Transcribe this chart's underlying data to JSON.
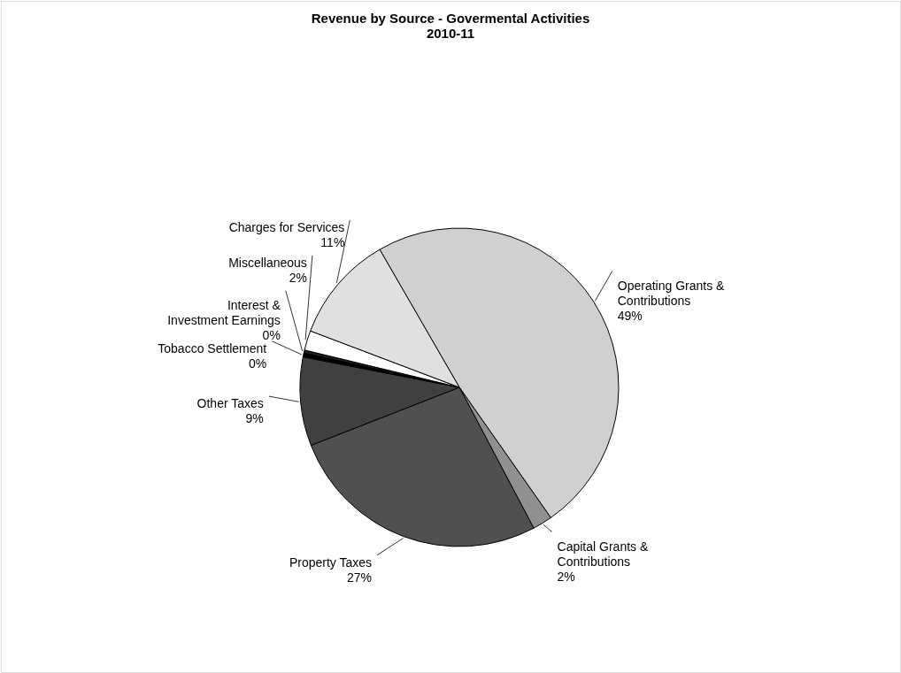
{
  "chart_data": {
    "type": "pie",
    "title": "Revenue by Source - Govermental Activities",
    "subtitle": "2010-11",
    "categories": [
      "Operating Grants & Contributions",
      "Capital Grants & Contributions",
      "Property Taxes",
      "Other Taxes",
      "Tobacco Settlement",
      "Interest & Investment Earnings",
      "Miscellaneous",
      "Charges for Services"
    ],
    "values": [
      48.6,
      2,
      26.8,
      9,
      0.4,
      0.3,
      2,
      10.9
    ],
    "value_labels": [
      "49%",
      "2%",
      "27%",
      "9%",
      "0%",
      "0%",
      "2%",
      "11%"
    ],
    "colors": [
      "#d0d0d0",
      "#909090",
      "#505050",
      "#404040",
      "#000000",
      "#202020",
      "#ffffff",
      "#e0e0e0"
    ]
  }
}
